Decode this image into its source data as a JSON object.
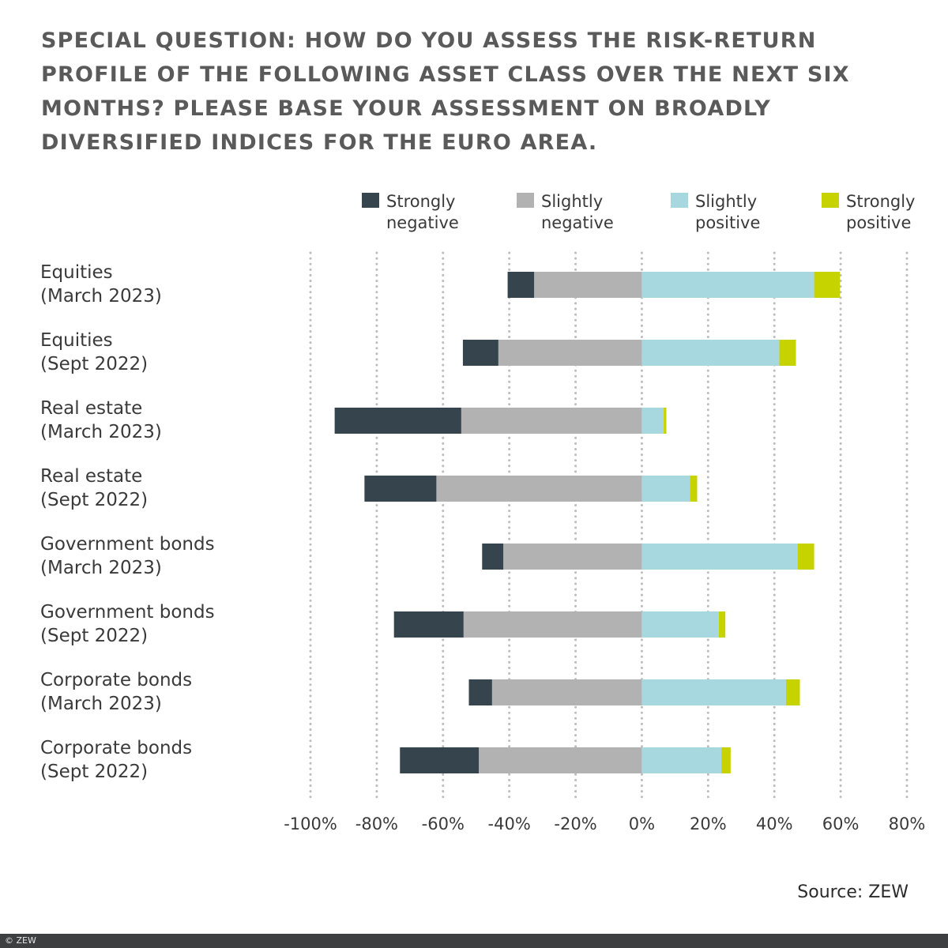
{
  "title": "SPECIAL QUESTION: HOW DO YOU ASSESS THE RISK-RETURN PROFILE OF THE FOLLOWING ASSET CLASS OVER THE NEXT SIX MONTHS? PLEASE BASE YOUR ASSESSMENT ON BROADLY DIVERSIFIED INDICES FOR THE EURO AREA.",
  "source": "Source: ZEW",
  "footer": "© ZEW",
  "colors": {
    "strongly_negative": "#36444d",
    "slightly_negative": "#b3b2b3",
    "slightly_positive": "#a8d8df",
    "strongly_positive": "#c6d300",
    "grid": "#bdbdbd",
    "text": "#3a3a3a"
  },
  "chart_data": {
    "type": "bar",
    "orientation": "horizontal",
    "stacking": "diverging",
    "title": "SPECIAL QUESTION: HOW DO YOU ASSESS THE RISK-RETURN PROFILE OF THE FOLLOWING ASSET CLASS OVER THE NEXT SIX MONTHS? PLEASE BASE YOUR ASSESSMENT ON BROADLY DIVERSIFIED INDICES FOR THE EURO AREA.",
    "unit": "%",
    "xlim": [
      -100,
      80
    ],
    "ticks": [
      -100,
      -80,
      -60,
      -40,
      -20,
      0,
      20,
      40,
      60,
      80
    ],
    "tick_labels": [
      "-100%",
      "-80%",
      "-60%",
      "-40%",
      "-20%",
      "0%",
      "20%",
      "40%",
      "60%",
      "80%"
    ],
    "grid": true,
    "legend_position": "top",
    "categories": [
      [
        "Equities",
        "(March 2023)"
      ],
      [
        "Equities",
        "(Sept 2022)"
      ],
      [
        "Real estate",
        "(March 2023)"
      ],
      [
        "Real estate",
        "(Sept 2022)"
      ],
      [
        "Government bonds",
        "(March 2023)"
      ],
      [
        "Government bonds",
        "(Sept 2022)"
      ],
      [
        "Corporate bonds",
        "(March 2023)"
      ],
      [
        "Corporate bonds",
        "(Sept 2022)"
      ]
    ],
    "series": [
      {
        "key": "strongly_negative",
        "name": [
          "Strongly",
          "negative"
        ],
        "side": "negative",
        "values": [
          -8,
          -10.7,
          -38.2,
          -21.7,
          -6.4,
          -21,
          -7,
          -23.8
        ]
      },
      {
        "key": "slightly_negative",
        "name": [
          "Slightly",
          "negative"
        ],
        "side": "negative",
        "values": [
          -32.5,
          -43.3,
          -54.5,
          -62,
          -41.8,
          -53.8,
          -45.2,
          -49.2
        ]
      },
      {
        "key": "slightly_positive",
        "name": [
          "Slightly",
          "positive"
        ],
        "side": "positive",
        "values": [
          52,
          41.5,
          6.6,
          14.5,
          47,
          23.2,
          43.5,
          24
        ]
      },
      {
        "key": "strongly_positive",
        "name": [
          "Strongly",
          "positive"
        ],
        "side": "positive",
        "values": [
          7.8,
          5,
          0.8,
          2.2,
          5,
          2,
          4.2,
          2.8
        ]
      }
    ]
  }
}
